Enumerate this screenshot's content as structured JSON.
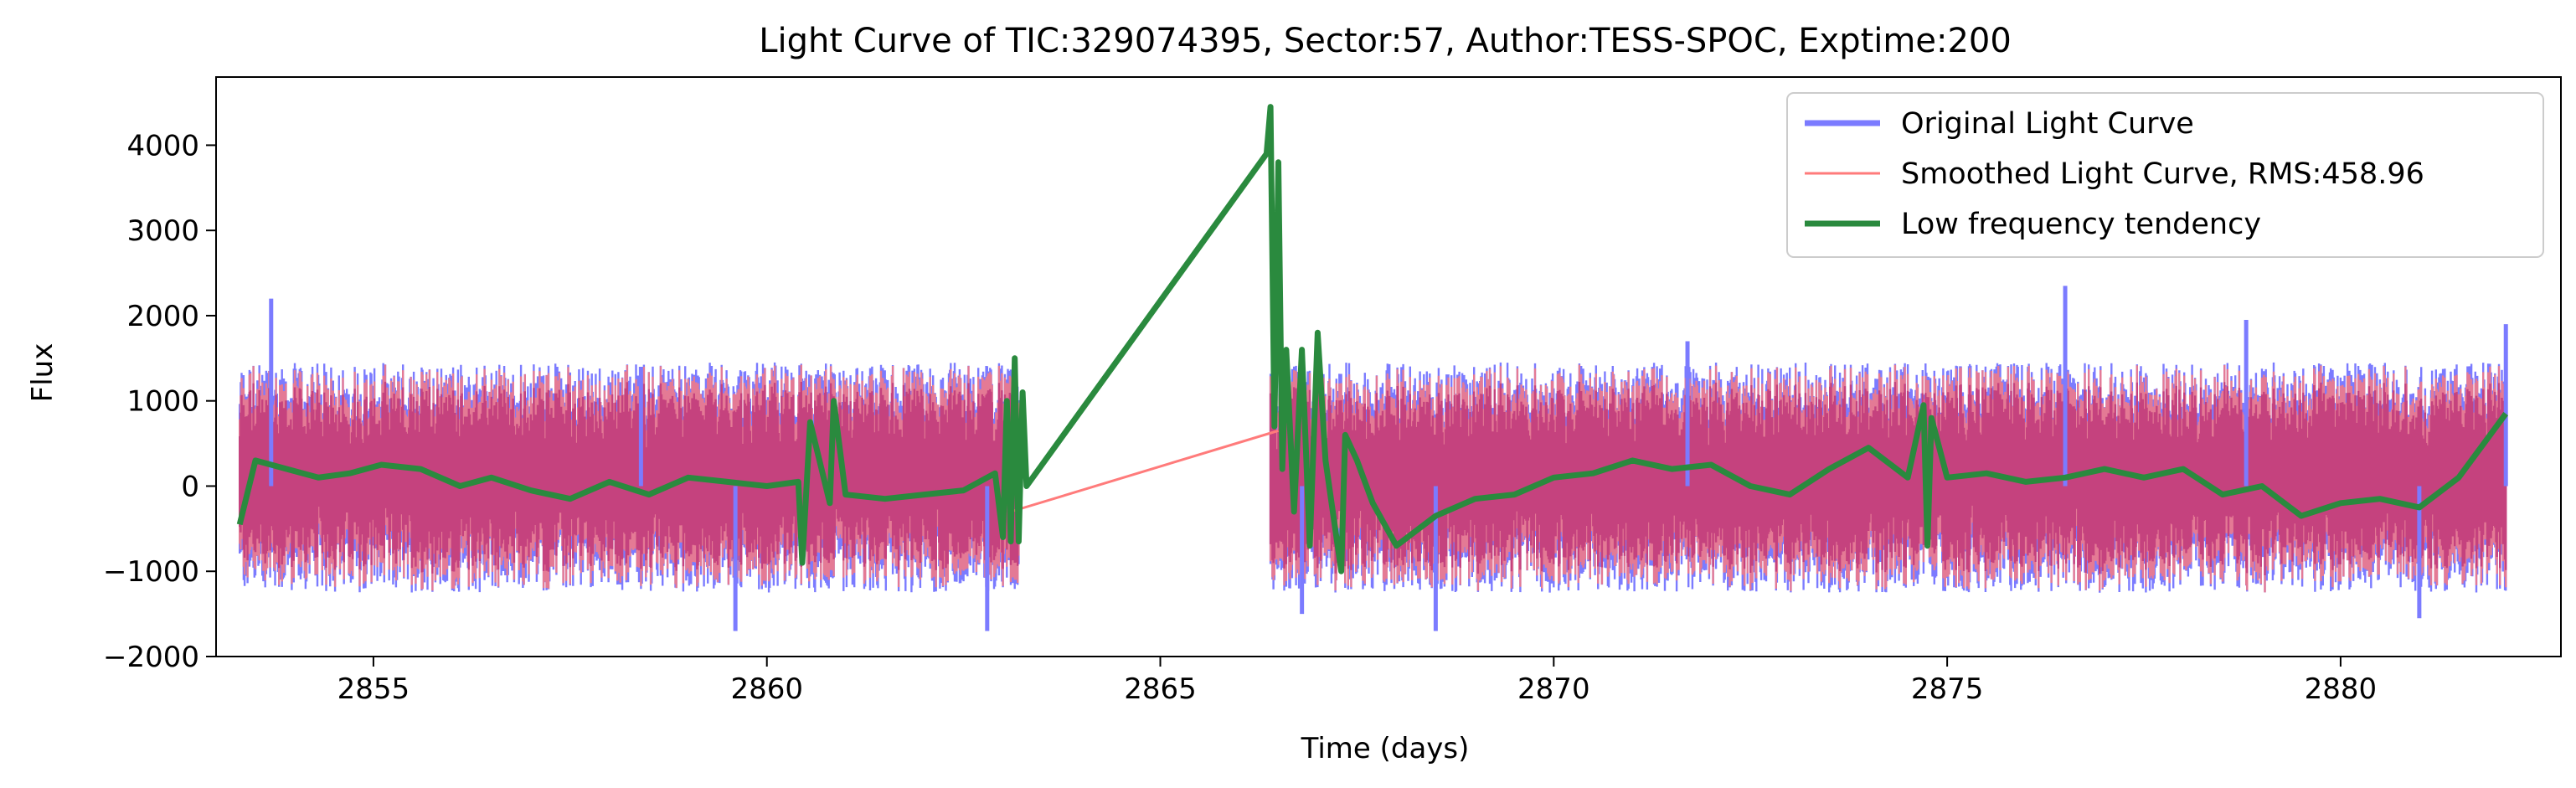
{
  "chart_data": {
    "type": "line",
    "title": "Light Curve of TIC:329074395, Sector:57, Author:TESS-SPOC, Exptime:200",
    "xlabel": "Time (days)",
    "ylabel": "Flux",
    "xlim": [
      2853.0,
      2882.8
    ],
    "ylim": [
      -2000,
      4800
    ],
    "x_ticks": [
      2855,
      2860,
      2865,
      2870,
      2875,
      2880
    ],
    "y_ticks": [
      -2000,
      -1000,
      0,
      1000,
      2000,
      3000,
      4000
    ],
    "grid": false,
    "legend_position": "top-right",
    "colors": {
      "original": "#7b7bff",
      "smoothed": "#ff7b7b",
      "trend": "#2a8a3e",
      "overlap": "#c0387a"
    },
    "gap": [
      2863.2,
      2866.4
    ],
    "noise": {
      "segments": [
        [
          2853.3,
          2863.2
        ],
        [
          2866.4,
          2882.1
        ]
      ],
      "band_low": -900,
      "band_high": 1100,
      "peaks": [
        {
          "x": 2853.7,
          "y": 2200
        },
        {
          "x": 2858.4,
          "y": 1400
        },
        {
          "x": 2859.6,
          "y": -1700
        },
        {
          "x": 2862.8,
          "y": -1700
        },
        {
          "x": 2866.8,
          "y": -1500
        },
        {
          "x": 2868.5,
          "y": -1700
        },
        {
          "x": 2871.7,
          "y": 1700
        },
        {
          "x": 2876.5,
          "y": 2350
        },
        {
          "x": 2878.8,
          "y": 1950
        },
        {
          "x": 2881.0,
          "y": -1550
        },
        {
          "x": 2882.1,
          "y": 1900
        }
      ]
    },
    "series": [
      {
        "name": "Original Light Curve",
        "role": "original"
      },
      {
        "name": "Smoothed Light Curve, RMS:458.96",
        "role": "smoothed",
        "x": [
          2863.1,
          2866.5
        ],
        "y": [
          -300,
          650
        ]
      },
      {
        "name": "Low frequency tendency",
        "role": "trend",
        "x": [
          2853.3,
          2853.5,
          2853.9,
          2854.3,
          2854.7,
          2855.1,
          2855.6,
          2856.1,
          2856.5,
          2857.0,
          2857.5,
          2858.0,
          2858.5,
          2859.0,
          2859.5,
          2860.0,
          2860.4,
          2860.45,
          2860.55,
          2860.8,
          2860.85,
          2861.0,
          2861.5,
          2862.0,
          2862.5,
          2862.9,
          2863.0,
          2863.05,
          2863.1,
          2863.15,
          2863.2,
          2863.25,
          2863.3,
          2866.35,
          2866.4,
          2866.45,
          2866.5,
          2866.55,
          2866.6,
          2866.7,
          2866.8,
          2866.9,
          2867.0,
          2867.1,
          2867.3,
          2867.35,
          2867.5,
          2867.7,
          2868.0,
          2868.5,
          2869.0,
          2869.5,
          2870.0,
          2870.5,
          2871.0,
          2871.5,
          2872.0,
          2872.5,
          2873.0,
          2873.5,
          2874.0,
          2874.5,
          2874.7,
          2874.75,
          2874.8,
          2875.0,
          2875.5,
          2876.0,
          2876.5,
          2877.0,
          2877.5,
          2878.0,
          2878.5,
          2879.0,
          2879.5,
          2880.0,
          2880.5,
          2881.0,
          2881.5,
          2882.1
        ],
        "y": [
          -450,
          300,
          200,
          100,
          150,
          250,
          200,
          0,
          100,
          -50,
          -150,
          50,
          -100,
          100,
          50,
          0,
          50,
          -900,
          750,
          -200,
          1000,
          -100,
          -150,
          -100,
          -50,
          150,
          -600,
          1000,
          -650,
          1500,
          -650,
          1100,
          0,
          3900,
          4450,
          700,
          3800,
          200,
          1600,
          -300,
          1600,
          -700,
          1800,
          300,
          -1000,
          600,
          300,
          -200,
          -700,
          -350,
          -150,
          -100,
          100,
          150,
          300,
          200,
          250,
          0,
          -100,
          200,
          450,
          100,
          950,
          -700,
          800,
          100,
          150,
          50,
          100,
          200,
          100,
          200,
          -100,
          0,
          -350,
          -200,
          -150,
          -250,
          100,
          850
        ]
      }
    ]
  }
}
